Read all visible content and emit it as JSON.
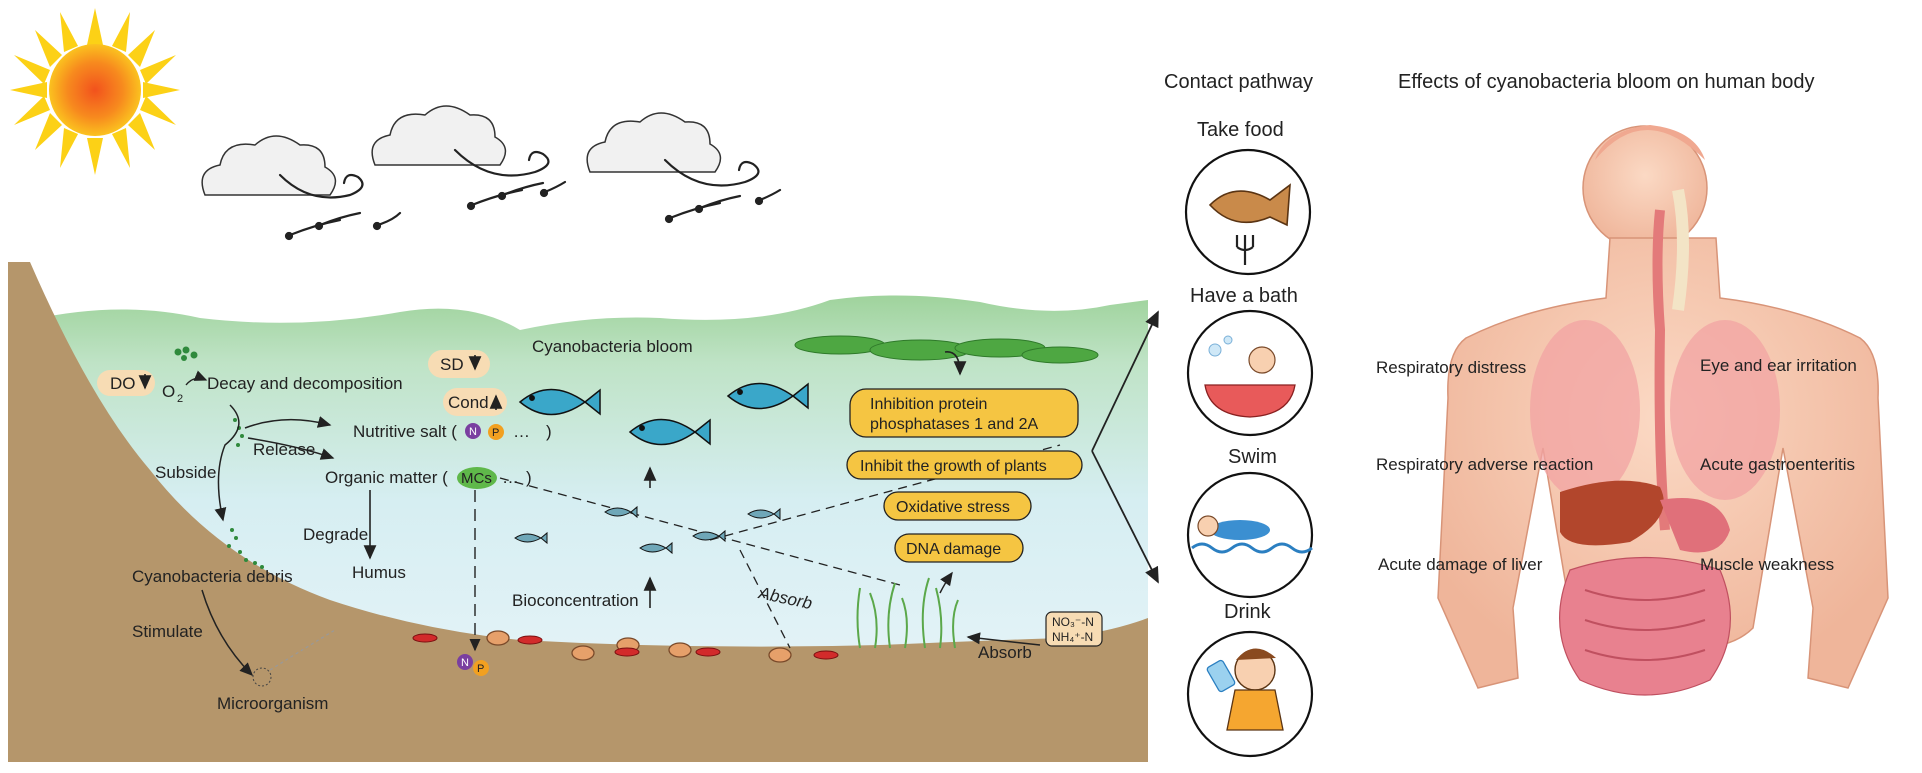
{
  "ecosystem": {
    "do_label": "DO",
    "o2_label": "O",
    "o2_sub": "2",
    "decay": "Decay and decomposition",
    "subside": "Subside",
    "release": "Release",
    "nutritive_salt": "Nutritive salt (",
    "nutrient_n": "N",
    "nutrient_p": "P",
    "ellipsis": "…",
    "close_paren": ")",
    "organic_matter": "Organic matter (",
    "mcs": "MCs",
    "degrade": "Degrade",
    "humus": "Humus",
    "debris": "Cyanobacteria debris",
    "stimulate": "Stimulate",
    "microorganism": "Microorganism",
    "sd": "SD",
    "cond": "Cond",
    "bloom": "Cyanobacteria bloom",
    "bioconcentration": "Bioconcentration",
    "absorb_center": "Absorb",
    "absorb_right": "Absorb",
    "no3": "NO₃⁻-N",
    "nh4": "NH₄⁺-N"
  },
  "effects_boxes": [
    "Inhibition protein",
    "phosphatases 1 and 2A",
    "Inhibit the growth of plants",
    "Oxidative stress",
    "DNA damage"
  ],
  "contact": {
    "heading": "Contact pathway",
    "items": [
      "Take food",
      "Have a bath",
      "Swim",
      "Drink"
    ]
  },
  "human": {
    "heading": "Effects of cyanobacteria bloom on human body",
    "left": [
      "Respiratory distress",
      "Respiratory  adverse reaction",
      "Acute damage of liver"
    ],
    "right": [
      "Eye and ear irritation",
      "Acute gastroenteritis",
      "Muscle weakness"
    ]
  },
  "colors": {
    "water_top": "#a9d8a6",
    "water_bottom": "#dff1f6",
    "soil": "#b5966b",
    "box_fill": "#f5c542",
    "label_fill": "#f7dcb4",
    "fish": "#3aa7c9"
  }
}
